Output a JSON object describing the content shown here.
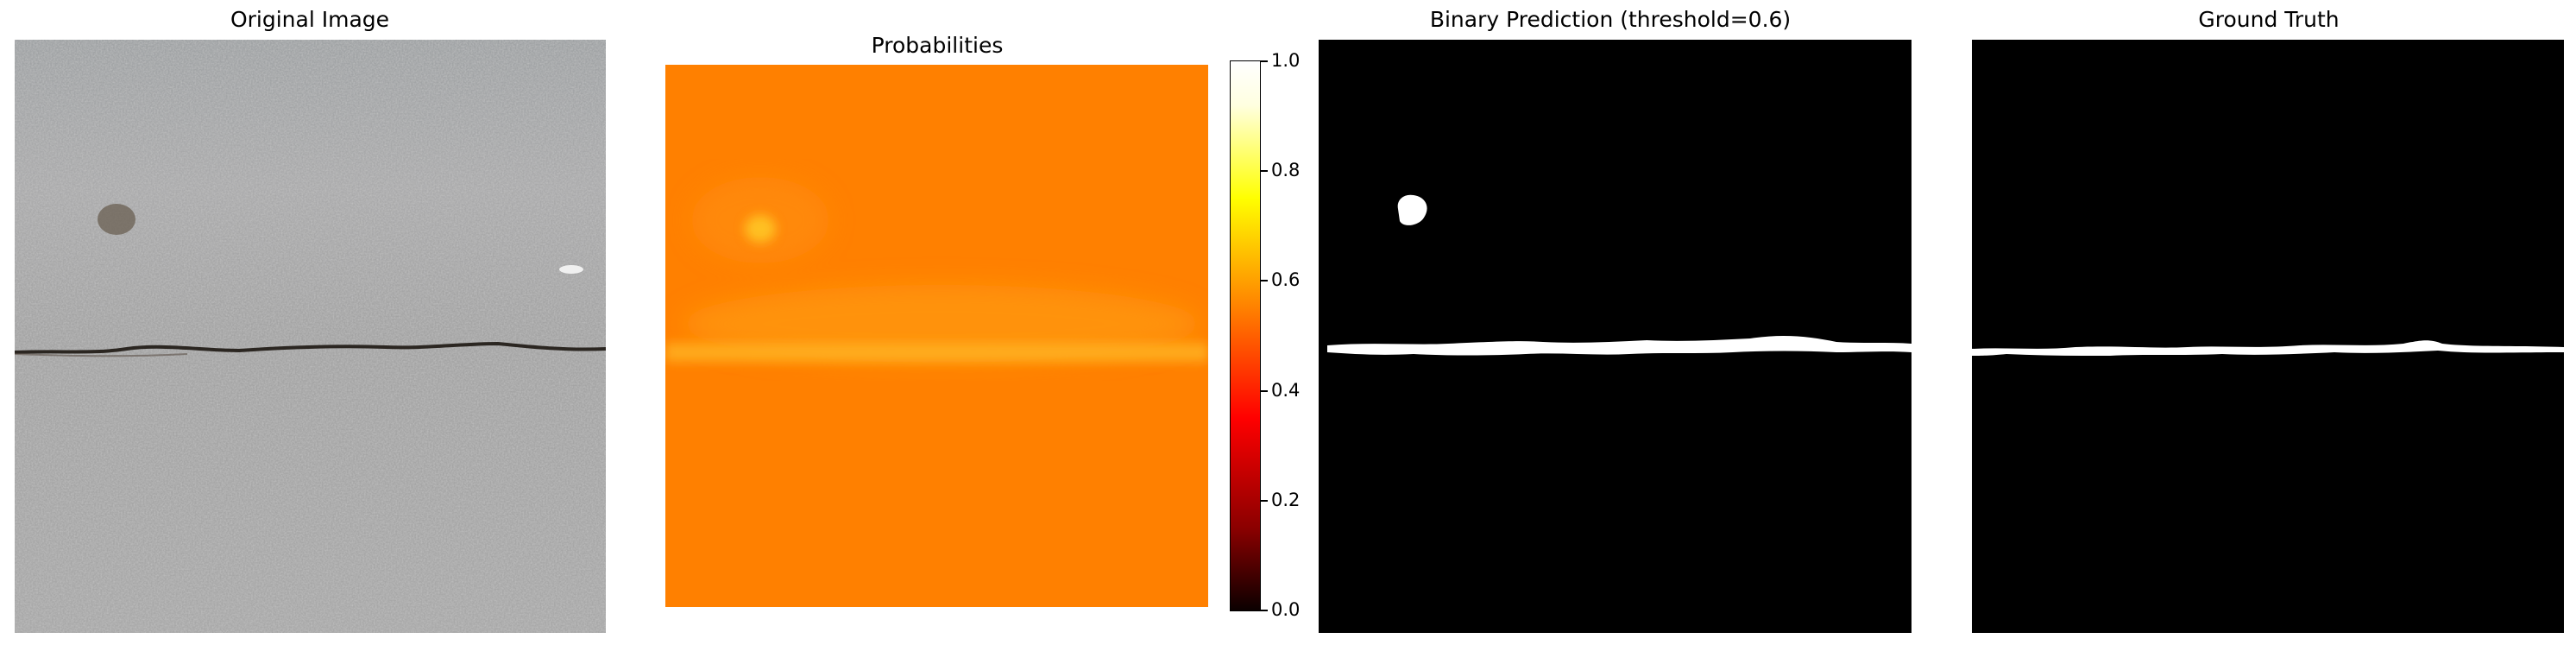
{
  "chart_data": [
    {
      "type": "image",
      "title": "Original Image",
      "content": "pavement photo with horizontal crack"
    },
    {
      "type": "heatmap",
      "title": "Probabilities",
      "colormap": "hot",
      "colorbar": {
        "ticks": [
          "0.0",
          "0.2",
          "0.4",
          "0.6",
          "0.8",
          "1.0"
        ],
        "tick_values": [
          0.0,
          0.2,
          0.4,
          0.6,
          0.8,
          1.0
        ],
        "range": [
          0.0,
          1.0
        ]
      },
      "regions": [
        {
          "name": "background",
          "value": 0.53
        },
        {
          "name": "crack line",
          "value": 0.62
        },
        {
          "name": "spot",
          "value": 0.66
        }
      ]
    },
    {
      "type": "image",
      "title": "Binary Prediction (threshold=0.6)",
      "threshold": 0.6
    },
    {
      "type": "image",
      "title": "Ground Truth"
    }
  ],
  "colors": {
    "background": "#ffffff",
    "prob_base": "#ff8000",
    "prob_highlight": "#ffb41e",
    "pavement": "#a6a6a6",
    "crack": "#2b2621",
    "mask_bg": "#000000",
    "mask_fg": "#ffffff"
  }
}
